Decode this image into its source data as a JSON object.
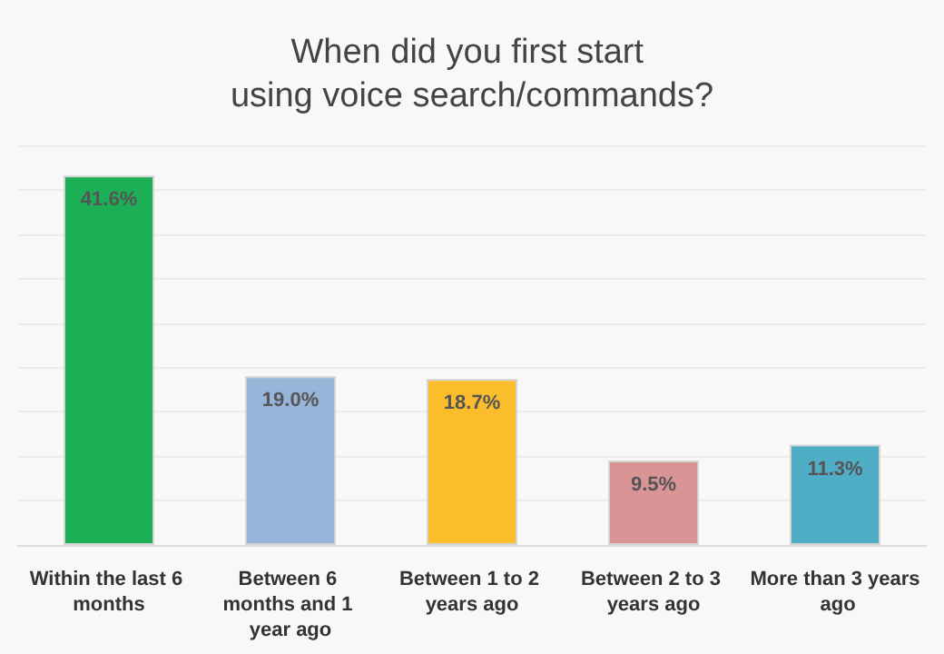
{
  "chart_data": {
    "type": "bar",
    "title": "When did you first start using voice search/commands?",
    "categories": [
      "Within the last 6 months",
      "Between 6 months and 1 year ago",
      "Between 1 to 2 years ago",
      "Between 2 to 3 years ago",
      "More than 3 years ago"
    ],
    "values": [
      41.6,
      19.0,
      18.7,
      9.5,
      11.3
    ],
    "value_labels": [
      "41.6%",
      "19.0%",
      "18.7%",
      "9.5%",
      "11.3%"
    ],
    "colors": [
      "#1daf55",
      "#97b5d9",
      "#fcbd2d",
      "#d99596",
      "#4fadc6"
    ],
    "ylim": [
      0,
      45
    ],
    "yticks": [
      {
        "value": 0,
        "label": null
      },
      {
        "value": 5,
        "label": null
      },
      {
        "value": 10,
        "label": null
      },
      {
        "value": 15,
        "label": null
      },
      {
        "value": 20,
        "label": null
      },
      {
        "value": 25,
        "label": null
      },
      {
        "value": 30,
        "label": null
      },
      {
        "value": 35,
        "label": null
      },
      {
        "value": 40,
        "label": null
      },
      {
        "value": 45,
        "label": null
      }
    ],
    "grid": true,
    "tick_labels": "x"
  }
}
